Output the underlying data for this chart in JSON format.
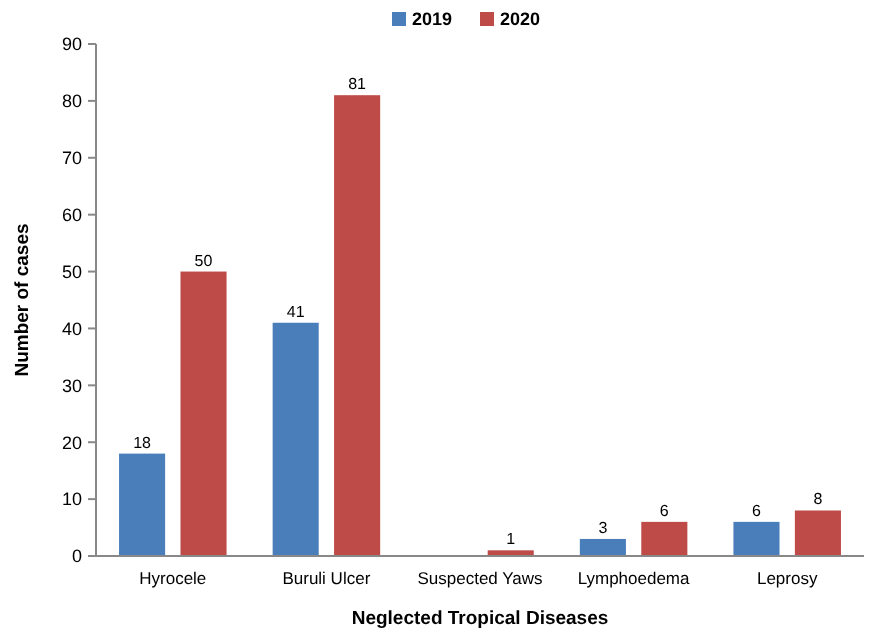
{
  "chart_data": {
    "type": "bar",
    "xlabel": "Neglected Tropical Diseases",
    "ylabel": "Number of cases",
    "categories": [
      "Hyrocele",
      "Buruli Ulcer",
      "Suspected Yaws",
      "Lymphoedema",
      "Leprosy"
    ],
    "series": [
      {
        "name": "2019",
        "color": "#4a7ebb",
        "values": [
          18,
          41,
          null,
          3,
          6
        ]
      },
      {
        "name": "2020",
        "color": "#be4b48",
        "values": [
          50,
          81,
          1,
          6,
          8
        ]
      }
    ],
    "ylim": [
      0,
      90
    ],
    "yticks": [
      0,
      10,
      20,
      30,
      40,
      50,
      60,
      70,
      80,
      90
    ],
    "data_labels": true,
    "legend": "top",
    "grid": false
  }
}
